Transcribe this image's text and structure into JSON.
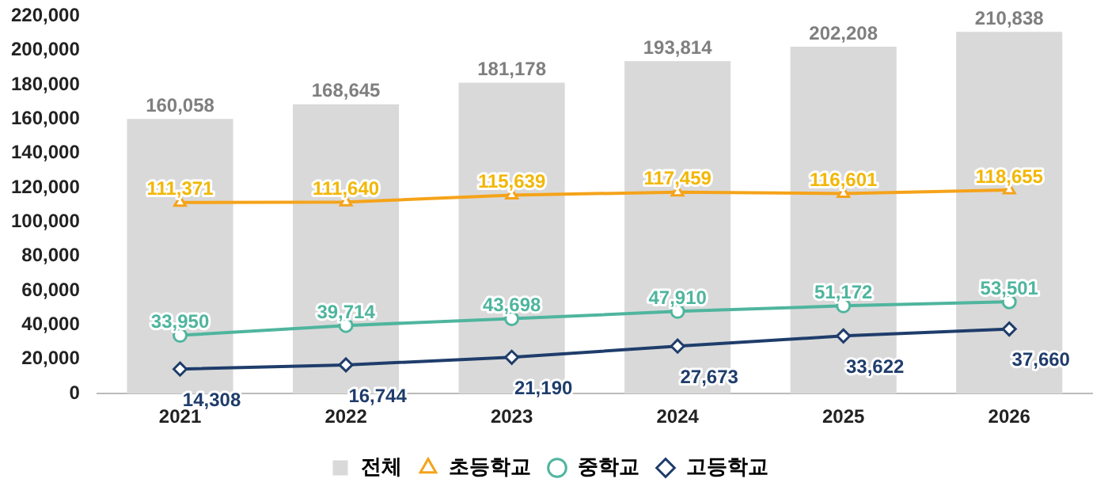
{
  "chart_data": {
    "type": "bar",
    "categories": [
      "2021",
      "2022",
      "2023",
      "2024",
      "2025",
      "2026"
    ],
    "series": [
      {
        "name": "전체",
        "color": "#d9d9d9",
        "values": [
          160058,
          168645,
          181178,
          193814,
          202208,
          210838
        ],
        "value_labels": [
          "160,058",
          "168,645",
          "181,178",
          "193,814",
          "202,208",
          "210,838"
        ]
      },
      {
        "name": "초등학교",
        "type": "line",
        "color": "#f5a31a",
        "marker": "triangle",
        "values": [
          111371,
          111640,
          115639,
          117459,
          116601,
          118655
        ],
        "value_labels": [
          "111,371",
          "111,640",
          "115,639",
          "117,459",
          "116,601",
          "118,655"
        ]
      },
      {
        "name": "중학교",
        "type": "line",
        "color": "#4fb59e",
        "marker": "circle",
        "values": [
          33950,
          39714,
          43698,
          47910,
          51172,
          53501
        ],
        "value_labels": [
          "33,950",
          "39,714",
          "43,698",
          "47,910",
          "51,172",
          "53,501"
        ]
      },
      {
        "name": "고등학교",
        "type": "line",
        "color": "#1f3d6b",
        "marker": "diamond",
        "values": [
          14308,
          16744,
          21190,
          27673,
          33622,
          37660
        ],
        "value_labels": [
          "14,308",
          "16,744",
          "21,190",
          "27,673",
          "33,622",
          "37,660"
        ]
      }
    ],
    "ylim": [
      0,
      220000
    ],
    "yticks": [
      {
        "value": 0,
        "label": "0"
      },
      {
        "value": 20000,
        "label": "20,000"
      },
      {
        "value": 40000,
        "label": "40,000"
      },
      {
        "value": 60000,
        "label": "60,000"
      },
      {
        "value": 80000,
        "label": "80,000"
      },
      {
        "value": 100000,
        "label": "100,000"
      },
      {
        "value": 120000,
        "label": "120,000"
      },
      {
        "value": 140000,
        "label": "140,000"
      },
      {
        "value": 160000,
        "label": "160,000"
      },
      {
        "value": 180000,
        "label": "180,000"
      },
      {
        "value": 200000,
        "label": "200,000"
      },
      {
        "value": 220000,
        "label": "220,000"
      }
    ],
    "grid": false,
    "legend": "bottom"
  }
}
